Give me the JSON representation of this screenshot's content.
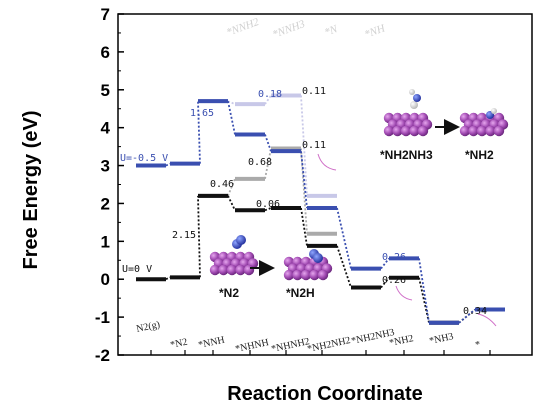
{
  "chart_data": {
    "type": "line",
    "ylabel": "Free Energy (eV)",
    "xlabel": "Reaction Coordinate",
    "ylim": [
      -2,
      7
    ],
    "yticks": [
      "-2",
      "-1",
      "0",
      "1",
      "2",
      "3",
      "4",
      "5",
      "6",
      "7"
    ],
    "grid": false,
    "categories": [
      "N2(g)",
      "*N2",
      "*NNH",
      "*NHNH",
      "*NHNH2",
      "*NH2NH2",
      "*NH2NH3",
      "*NH2",
      "*NH3",
      "*"
    ],
    "top_labels": [
      "*NNH2",
      "*NNH3",
      "*N",
      "*NH"
    ],
    "series": [
      {
        "name": "U=0 V",
        "color": "#111111",
        "values": [
          0,
          0.05,
          2.2,
          1.82,
          1.88,
          0.88,
          -0.22,
          0.04,
          -1.15,
          -0.8
        ]
      },
      {
        "name": "U=-0.5 V",
        "color": "#3a4fb0",
        "values": [
          3.0,
          3.05,
          4.7,
          3.82,
          3.38,
          1.88,
          0.28,
          0.55,
          -1.15,
          -0.8
        ]
      },
      {
        "name": "",
        "color": "#aaaaaa",
        "values": [
          null,
          null,
          2.2,
          2.65,
          3.45,
          1.2,
          null,
          null,
          null,
          null
        ]
      },
      {
        "name": "",
        "color": "#c8c8e8",
        "values": [
          null,
          null,
          4.7,
          4.62,
          4.85,
          2.2,
          null,
          null,
          null,
          null
        ]
      }
    ],
    "annotations": [
      {
        "text": "2.15",
        "color": "#111111"
      },
      {
        "text": "0.06",
        "color": "#111111"
      },
      {
        "text": "0.46",
        "color": "#111111"
      },
      {
        "text": "0.68",
        "color": "#111111"
      },
      {
        "text": "0.11",
        "color": "#111111"
      },
      {
        "text": "0.26",
        "color": "#111111"
      },
      {
        "text": "0.34",
        "color": "#111111"
      },
      {
        "text": "1.65",
        "color": "#3a4fb0"
      },
      {
        "text": "0.18",
        "color": "#3a4fb0"
      },
      {
        "text": "0.11",
        "color": "#111111"
      },
      {
        "text": "0.26",
        "color": "#3a4fb0"
      }
    ],
    "insets": [
      {
        "left": "*N2",
        "right": "*N2H"
      },
      {
        "left": "*NH2NH3",
        "right": "*NH2"
      }
    ]
  }
}
